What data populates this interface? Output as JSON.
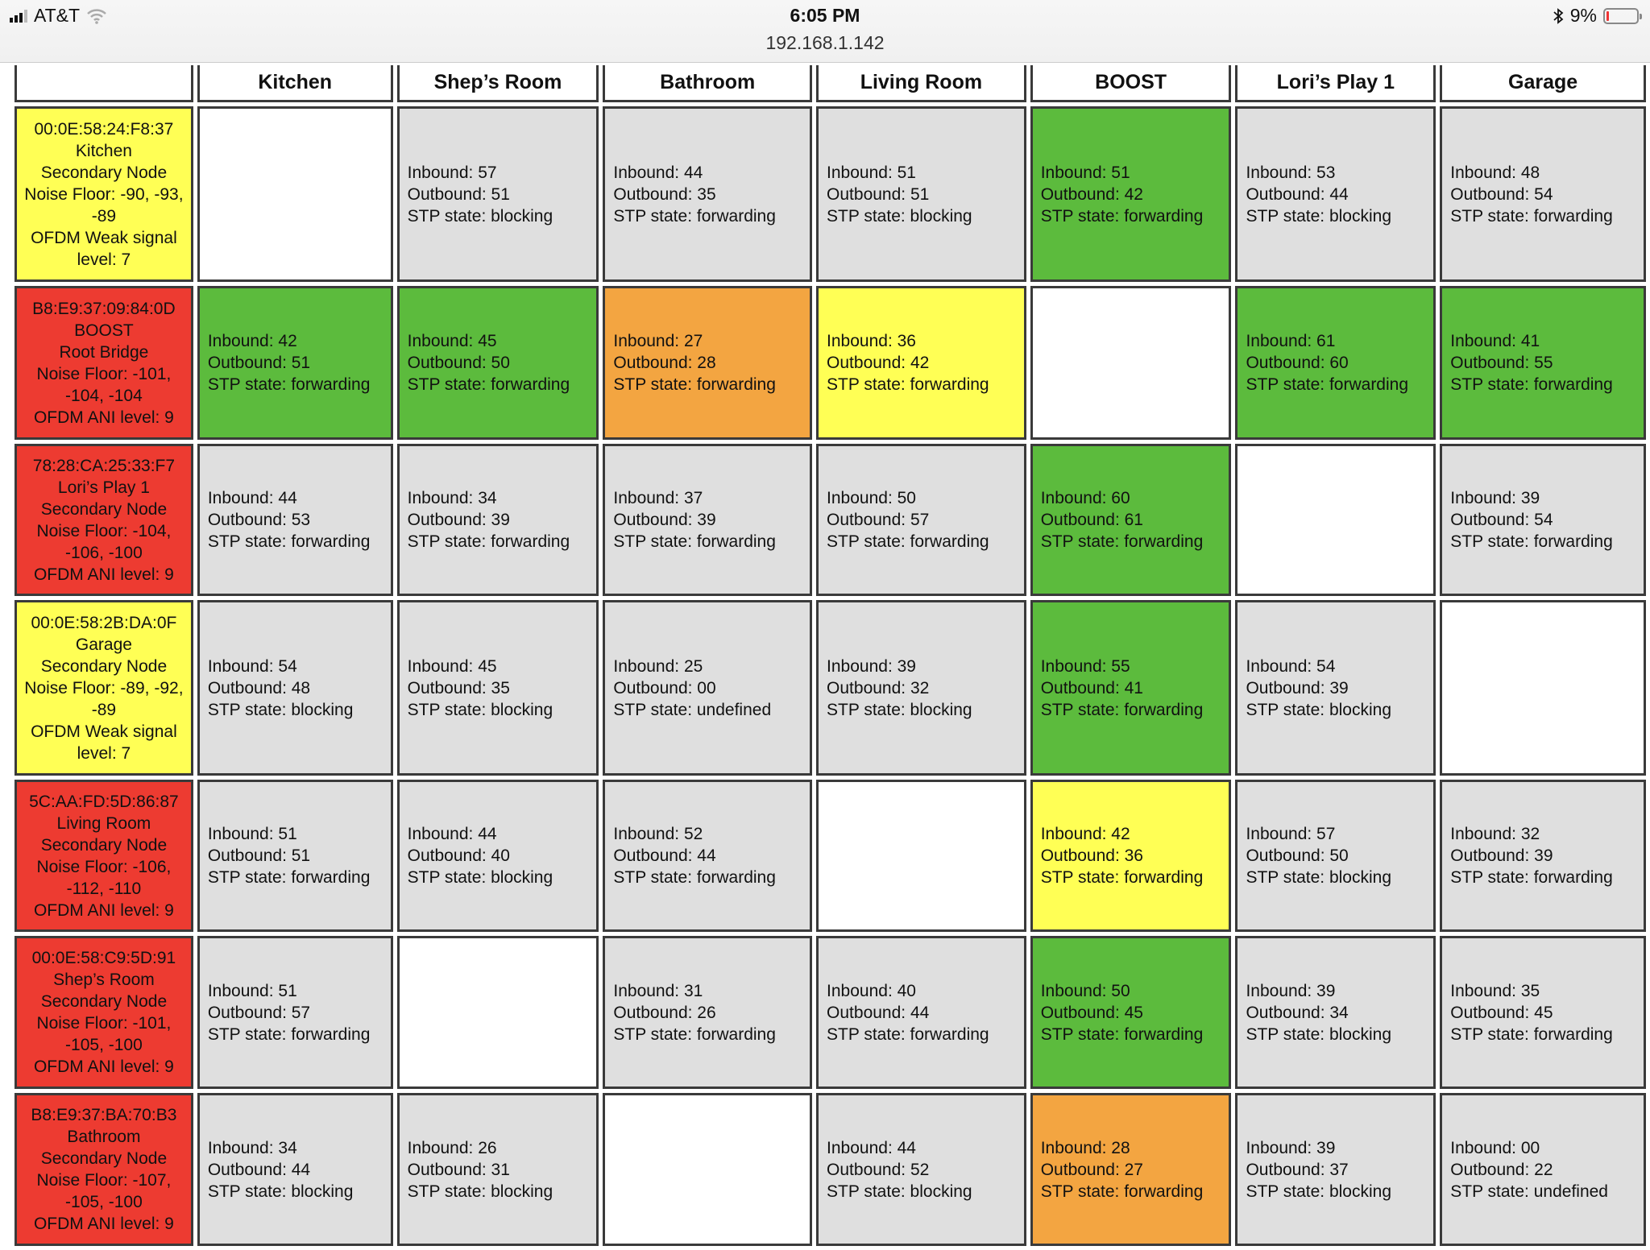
{
  "status_bar": {
    "carrier": "AT&T",
    "time": "6:05 PM",
    "url": "192.168.1.142",
    "battery": "9%",
    "battery_level_percent": 9,
    "icons": [
      "signal-icon",
      "wifi-icon",
      "bluetooth-icon",
      "battery-icon"
    ]
  },
  "colors": {
    "yellow": "#ffff55",
    "red": "#ed3b31",
    "green": "#5cbb3d",
    "orange": "#f3a541",
    "gray": "#dfdfdf"
  },
  "columns": [
    "",
    "Kitchen",
    "Shep’s Room",
    "Bathroom",
    "Living Room",
    "BOOST",
    "Lori’s Play 1",
    "Garage"
  ],
  "rows": [
    {
      "color": "yellow",
      "lines": [
        "00:0E:58:24:F8:37",
        "Kitchen",
        "Secondary Node",
        "Noise Floor: -90, -93, -89",
        "OFDM Weak signal level: 7"
      ],
      "cells": [
        null,
        {
          "color": "gray",
          "inbound": "Inbound: 57",
          "outbound": "Outbound: 51",
          "stp": "STP state: blocking"
        },
        {
          "color": "gray",
          "inbound": "Inbound: 44",
          "outbound": "Outbound: 35",
          "stp": "STP state: forwarding"
        },
        {
          "color": "gray",
          "inbound": "Inbound: 51",
          "outbound": "Outbound: 51",
          "stp": "STP state: blocking"
        },
        {
          "color": "green",
          "inbound": "Inbound: 51",
          "outbound": "Outbound: 42",
          "stp": "STP state: forwarding"
        },
        {
          "color": "gray",
          "inbound": "Inbound: 53",
          "outbound": "Outbound: 44",
          "stp": "STP state: blocking"
        },
        {
          "color": "gray",
          "inbound": "Inbound: 48",
          "outbound": "Outbound: 54",
          "stp": "STP state: forwarding"
        }
      ]
    },
    {
      "color": "red",
      "lines": [
        "B8:E9:37:09:84:0D",
        "BOOST",
        "Root Bridge",
        "Noise Floor: -101, -104, -104",
        "OFDM ANI level: 9"
      ],
      "cells": [
        {
          "color": "green",
          "inbound": "Inbound: 42",
          "outbound": "Outbound: 51",
          "stp": "STP state: forwarding"
        },
        {
          "color": "green",
          "inbound": "Inbound: 45",
          "outbound": "Outbound: 50",
          "stp": "STP state: forwarding"
        },
        {
          "color": "orange",
          "inbound": "Inbound: 27",
          "outbound": "Outbound: 28",
          "stp": "STP state: forwarding"
        },
        {
          "color": "yellow",
          "inbound": "Inbound: 36",
          "outbound": "Outbound: 42",
          "stp": "STP state: forwarding"
        },
        null,
        {
          "color": "green",
          "inbound": "Inbound: 61",
          "outbound": "Outbound: 60",
          "stp": "STP state: forwarding"
        },
        {
          "color": "green",
          "inbound": "Inbound: 41",
          "outbound": "Outbound: 55",
          "stp": "STP state: forwarding"
        }
      ]
    },
    {
      "color": "red",
      "lines": [
        "78:28:CA:25:33:F7",
        "Lori’s Play 1",
        "Secondary Node",
        "Noise Floor: -104, -106, -100",
        "OFDM ANI level: 9"
      ],
      "cells": [
        {
          "color": "gray",
          "inbound": "Inbound: 44",
          "outbound": "Outbound: 53",
          "stp": "STP state: forwarding"
        },
        {
          "color": "gray",
          "inbound": "Inbound: 34",
          "outbound": "Outbound: 39",
          "stp": "STP state: forwarding"
        },
        {
          "color": "gray",
          "inbound": "Inbound: 37",
          "outbound": "Outbound: 39",
          "stp": "STP state: forwarding"
        },
        {
          "color": "gray",
          "inbound": "Inbound: 50",
          "outbound": "Outbound: 57",
          "stp": "STP state: forwarding"
        },
        {
          "color": "green",
          "inbound": "Inbound: 60",
          "outbound": "Outbound: 61",
          "stp": "STP state: forwarding"
        },
        null,
        {
          "color": "gray",
          "inbound": "Inbound: 39",
          "outbound": "Outbound: 54",
          "stp": "STP state: forwarding"
        }
      ]
    },
    {
      "color": "yellow",
      "lines": [
        "00:0E:58:2B:DA:0F",
        "Garage",
        "Secondary Node",
        "Noise Floor: -89, -92, -89",
        "OFDM Weak signal level: 7"
      ],
      "cells": [
        {
          "color": "gray",
          "inbound": "Inbound: 54",
          "outbound": "Outbound: 48",
          "stp": "STP state: blocking"
        },
        {
          "color": "gray",
          "inbound": "Inbound: 45",
          "outbound": "Outbound: 35",
          "stp": "STP state: blocking"
        },
        {
          "color": "gray",
          "inbound": "Inbound: 25",
          "outbound": "Outbound: 00",
          "stp": "STP state: undefined"
        },
        {
          "color": "gray",
          "inbound": "Inbound: 39",
          "outbound": "Outbound: 32",
          "stp": "STP state: blocking"
        },
        {
          "color": "green",
          "inbound": "Inbound: 55",
          "outbound": "Outbound: 41",
          "stp": "STP state: forwarding"
        },
        {
          "color": "gray",
          "inbound": "Inbound: 54",
          "outbound": "Outbound: 39",
          "stp": "STP state: blocking"
        },
        null
      ]
    },
    {
      "color": "red",
      "lines": [
        "5C:AA:FD:5D:86:87",
        "Living Room",
        "Secondary Node",
        "Noise Floor: -106, -112, -110",
        "OFDM ANI level: 9"
      ],
      "cells": [
        {
          "color": "gray",
          "inbound": "Inbound: 51",
          "outbound": "Outbound: 51",
          "stp": "STP state: forwarding"
        },
        {
          "color": "gray",
          "inbound": "Inbound: 44",
          "outbound": "Outbound: 40",
          "stp": "STP state: blocking"
        },
        {
          "color": "gray",
          "inbound": "Inbound: 52",
          "outbound": "Outbound: 44",
          "stp": "STP state: forwarding"
        },
        null,
        {
          "color": "yellow",
          "inbound": "Inbound: 42",
          "outbound": "Outbound: 36",
          "stp": "STP state: forwarding"
        },
        {
          "color": "gray",
          "inbound": "Inbound: 57",
          "outbound": "Outbound: 50",
          "stp": "STP state: blocking"
        },
        {
          "color": "gray",
          "inbound": "Inbound: 32",
          "outbound": "Outbound: 39",
          "stp": "STP state: forwarding"
        }
      ]
    },
    {
      "color": "red",
      "lines": [
        "00:0E:58:C9:5D:91",
        "Shep’s Room",
        "Secondary Node",
        "Noise Floor: -101, -105, -100",
        "OFDM ANI level: 9"
      ],
      "cells": [
        {
          "color": "gray",
          "inbound": "Inbound: 51",
          "outbound": "Outbound: 57",
          "stp": "STP state: forwarding"
        },
        null,
        {
          "color": "gray",
          "inbound": "Inbound: 31",
          "outbound": "Outbound: 26",
          "stp": "STP state: forwarding"
        },
        {
          "color": "gray",
          "inbound": "Inbound: 40",
          "outbound": "Outbound: 44",
          "stp": "STP state: forwarding"
        },
        {
          "color": "green",
          "inbound": "Inbound: 50",
          "outbound": "Outbound: 45",
          "stp": "STP state: forwarding"
        },
        {
          "color": "gray",
          "inbound": "Inbound: 39",
          "outbound": "Outbound: 34",
          "stp": "STP state: blocking"
        },
        {
          "color": "gray",
          "inbound": "Inbound: 35",
          "outbound": "Outbound: 45",
          "stp": "STP state: forwarding"
        }
      ]
    },
    {
      "color": "red",
      "lines": [
        "B8:E9:37:BA:70:B3",
        "Bathroom",
        "Secondary Node",
        "Noise Floor: -107, -105, -100",
        "OFDM ANI level: 9"
      ],
      "cells": [
        {
          "color": "gray",
          "inbound": "Inbound: 34",
          "outbound": "Outbound: 44",
          "stp": "STP state: blocking"
        },
        {
          "color": "gray",
          "inbound": "Inbound: 26",
          "outbound": "Outbound: 31",
          "stp": "STP state: blocking"
        },
        null,
        {
          "color": "gray",
          "inbound": "Inbound: 44",
          "outbound": "Outbound: 52",
          "stp": "STP state: blocking"
        },
        {
          "color": "orange",
          "inbound": "Inbound: 28",
          "outbound": "Outbound: 27",
          "stp": "STP state: forwarding"
        },
        {
          "color": "gray",
          "inbound": "Inbound: 39",
          "outbound": "Outbound: 37",
          "stp": "STP state: blocking"
        },
        {
          "color": "gray",
          "inbound": "Inbound: 00",
          "outbound": "Outbound: 22",
          "stp": "STP state: undefined"
        }
      ]
    }
  ]
}
